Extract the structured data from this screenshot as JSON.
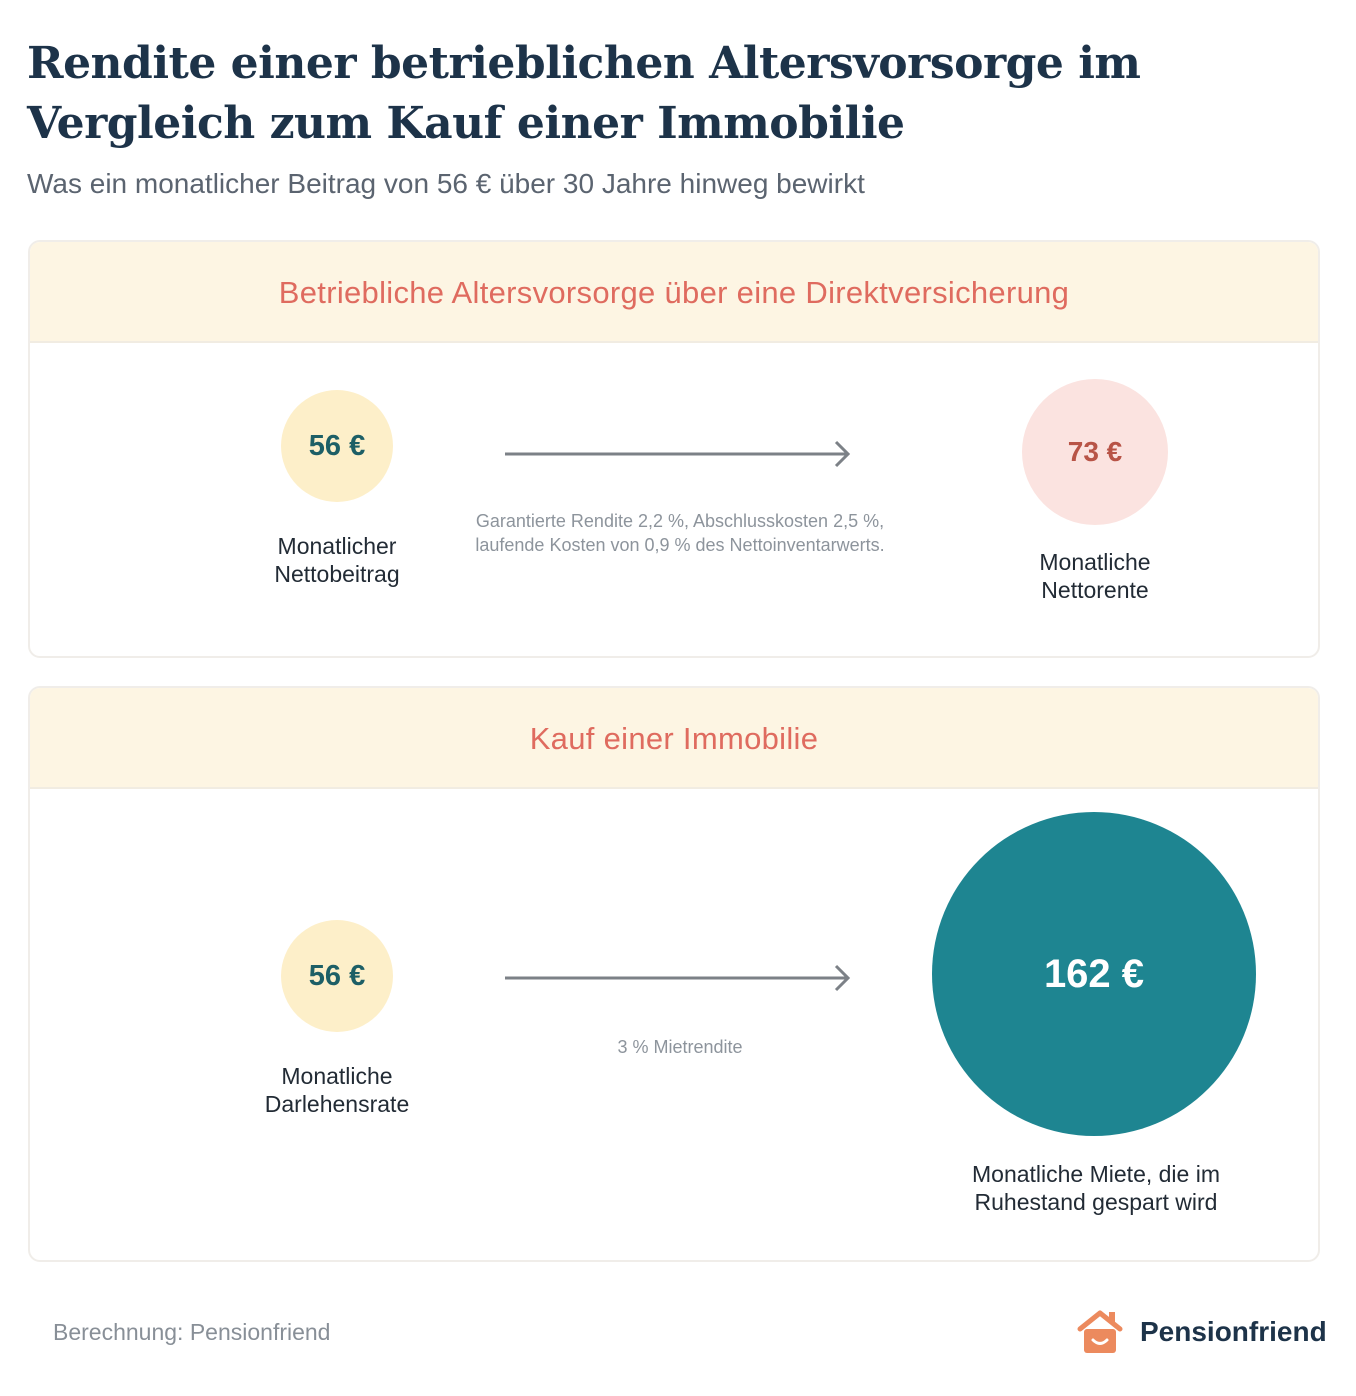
{
  "title": "Rendite einer betrieblichen Altersvorsorge im Vergleich zum Kauf einer Immobilie",
  "subtitle": "Was ein monatlicher Beitrag von 56 € über 30 Jahre hinweg bewirkt",
  "section1": {
    "header": "Betriebliche Altersvorsorge über eine Direktversicherung",
    "input_value": "56 €",
    "input_label_line1": "Monatlicher",
    "input_label_line2": "Nettobeitrag",
    "note_line1": "Garantierte Rendite 2,2 %, Abschlusskosten 2,5 %,",
    "note_line2": "laufende Kosten von 0,9 % des Nettoinventarwerts.",
    "output_value": "73 €",
    "output_label_line1": "Monatliche",
    "output_label_line2": "Nettorente"
  },
  "section2": {
    "header": "Kauf einer Immobilie",
    "input_value": "56 €",
    "input_label_line1": "Monatliche",
    "input_label_line2": "Darlehensrate",
    "note_line1": "3 % Mietrendite",
    "output_value": "162 €",
    "output_label_line1": "Monatliche Miete, die im",
    "output_label_line2": "Ruhestand gespart wird"
  },
  "footer": {
    "source": "Berechnung: Pensionfriend",
    "brand": "Pensionfriend"
  },
  "colors": {
    "accent": "#df6b5f",
    "teal": "#1e8591",
    "cream": "#fdefc9",
    "pink": "#fbe3e0",
    "navy": "#1d3349"
  }
}
